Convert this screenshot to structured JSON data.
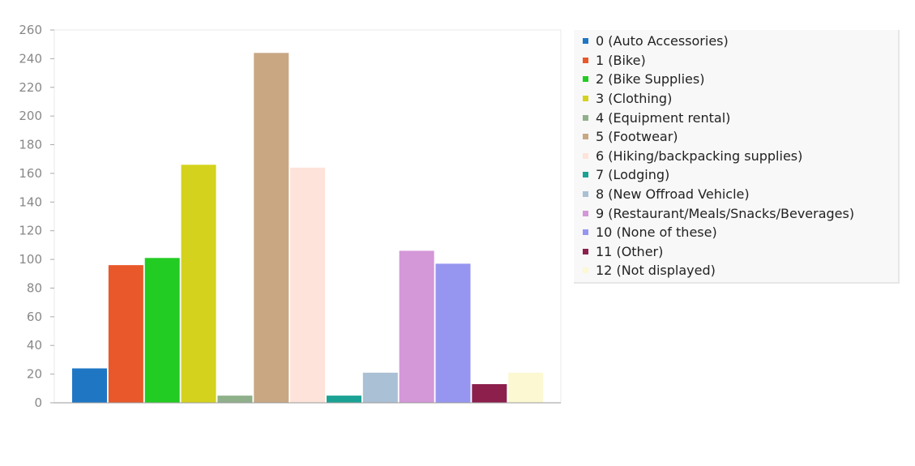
{
  "chart_data": {
    "type": "bar",
    "categories": [
      "0 (Auto Accessories)",
      "1 (Bike)",
      "2 (Bike Supplies)",
      "3 (Clothing)",
      "4 (Equipment rental)",
      "5 (Footwear)",
      "6 (Hiking/backpacking supplies)",
      "7 (Lodging)",
      "8 (New Offroad Vehicle)",
      "9 (Restaurant/Meals/Snacks/Beverages)",
      "10 (None of these)",
      "11 (Other)",
      "12 (Not displayed)"
    ],
    "values": [
      24,
      96,
      101,
      166,
      5,
      244,
      164,
      5,
      21,
      106,
      97,
      13,
      21
    ],
    "colors": [
      "#1f77c4",
      "#e8582a",
      "#22cc22",
      "#d4d21c",
      "#8fb08a",
      "#c9a783",
      "#fde3da",
      "#1aa294",
      "#aac0d4",
      "#d497d8",
      "#9696f0",
      "#8c1f4c",
      "#fbf8d2"
    ],
    "yticks": [
      "0",
      "20",
      "40",
      "60",
      "80",
      "100",
      "120",
      "140",
      "160",
      "180",
      "200",
      "220",
      "240",
      "260"
    ],
    "ylim": [
      0,
      260
    ],
    "grid": false,
    "legend_position": "right"
  }
}
